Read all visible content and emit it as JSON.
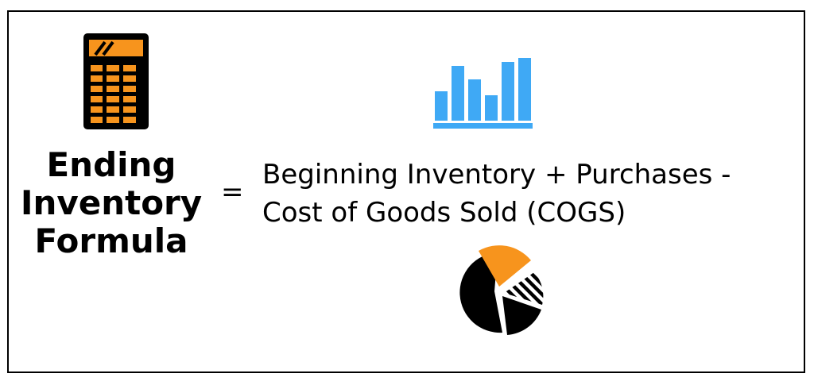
{
  "title": {
    "lines": [
      "Ending",
      "Inventory",
      "Formula"
    ]
  },
  "equals_sign": "=",
  "formula": {
    "lines": [
      "Beginning Inventory + Purchases -",
      "Cost of Goods Sold (COGS)"
    ]
  },
  "icons": {
    "calculator": "calculator-icon",
    "bar_chart": "bar-chart-icon",
    "pie_chart": "pie-chart-icon"
  },
  "colors": {
    "orange": "#F7941D",
    "blue": "#3FA9F5",
    "black": "#000000",
    "background": "#FFFFFF"
  }
}
